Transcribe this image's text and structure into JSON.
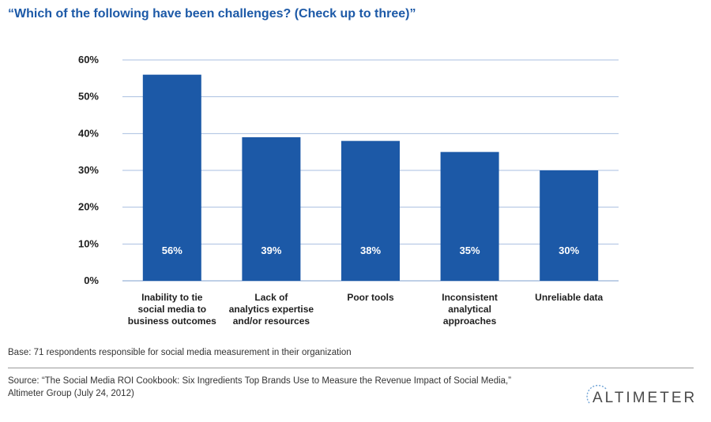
{
  "title": "“Which of the following have been challenges? (Check up to three)”",
  "chart_data": {
    "type": "bar",
    "title": "“Which of the following have been challenges? (Check up to three)”",
    "xlabel": "",
    "ylabel": "",
    "ylim": [
      0,
      60
    ],
    "yticks": [
      0,
      10,
      20,
      30,
      40,
      50,
      60
    ],
    "ytick_labels": [
      "0%",
      "10%",
      "20%",
      "30%",
      "40%",
      "50%",
      "60%"
    ],
    "grid": true,
    "bar_color": "#1c59a7",
    "categories": [
      [
        "Inability to tie",
        "social media to",
        "business outcomes"
      ],
      [
        "Lack of",
        "analytics expertise",
        "and/or resources"
      ],
      [
        "Poor tools"
      ],
      [
        "Inconsistent",
        "analytical",
        "approaches"
      ],
      [
        "Unreliable data"
      ]
    ],
    "values": [
      56,
      39,
      38,
      35,
      30
    ],
    "value_labels": [
      "56%",
      "39%",
      "38%",
      "35%",
      "30%"
    ]
  },
  "footer": {
    "base": "Base: 71 respondents responsible for social media measurement in their organization",
    "source_line1": "Source: “The Social Media ROI Cookbook: Six Ingredients Top Brands Use to Measure the Revenue Impact of Social Media,”",
    "source_line2": "Altimeter Group (July 24, 2012)"
  },
  "logo": {
    "text": "ALTIMETER",
    "color": "#4a4a4a"
  }
}
